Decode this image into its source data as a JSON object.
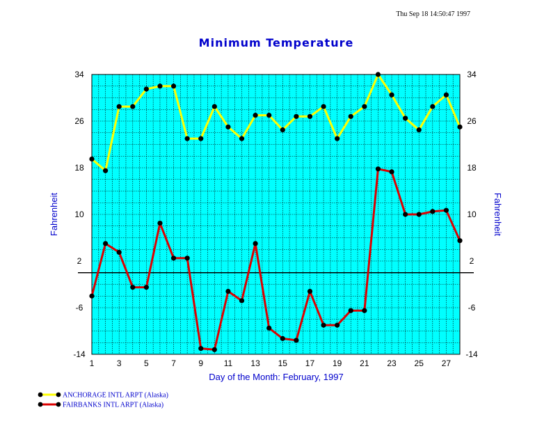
{
  "timestamp": "Thu Sep 18 14:50:47 1997",
  "chart_data": {
    "type": "line",
    "title": "Minimum Temperature",
    "xlabel": "Day of the Month:  February, 1997",
    "ylabel": "Fahrenheit",
    "xlim": [
      1,
      28
    ],
    "ylim": [
      -14,
      34
    ],
    "x_ticks": [
      1,
      3,
      5,
      7,
      9,
      11,
      13,
      15,
      17,
      19,
      21,
      23,
      25,
      27
    ],
    "y_ticks": [
      -14,
      -6,
      2,
      10,
      18,
      26,
      34
    ],
    "zero_line": 0,
    "grid": true,
    "plot_background": "#00ffff",
    "x": [
      1,
      2,
      3,
      4,
      5,
      6,
      7,
      8,
      9,
      10,
      11,
      12,
      13,
      14,
      15,
      16,
      17,
      18,
      19,
      20,
      21,
      22,
      23,
      24,
      25,
      26,
      27,
      28
    ],
    "series": [
      {
        "name": "ANCHORAGE INTL ARPT (Alaska)",
        "color": "#ffff00",
        "values": [
          19.5,
          17.5,
          28.5,
          28.5,
          31.5,
          32,
          32,
          23,
          23,
          28.5,
          25,
          23,
          27,
          27,
          24.5,
          26.8,
          26.8,
          28.5,
          23,
          26.8,
          28.5,
          34,
          30.5,
          26.5,
          24.5,
          28.5,
          30.5,
          25
        ]
      },
      {
        "name": "FAIRBANKS INTL ARPT (Alaska)",
        "color": "#dd0000",
        "values": [
          -4,
          5,
          3.5,
          -2.5,
          -2.5,
          8.5,
          2.5,
          2.5,
          -13,
          -13.2,
          -3.2,
          -4.8,
          5,
          -9.5,
          -11.3,
          -11.6,
          -3.2,
          -9,
          -9,
          -6.5,
          -6.5,
          17.8,
          17.3,
          10,
          10,
          10.5,
          10.7,
          5.5
        ]
      }
    ]
  }
}
